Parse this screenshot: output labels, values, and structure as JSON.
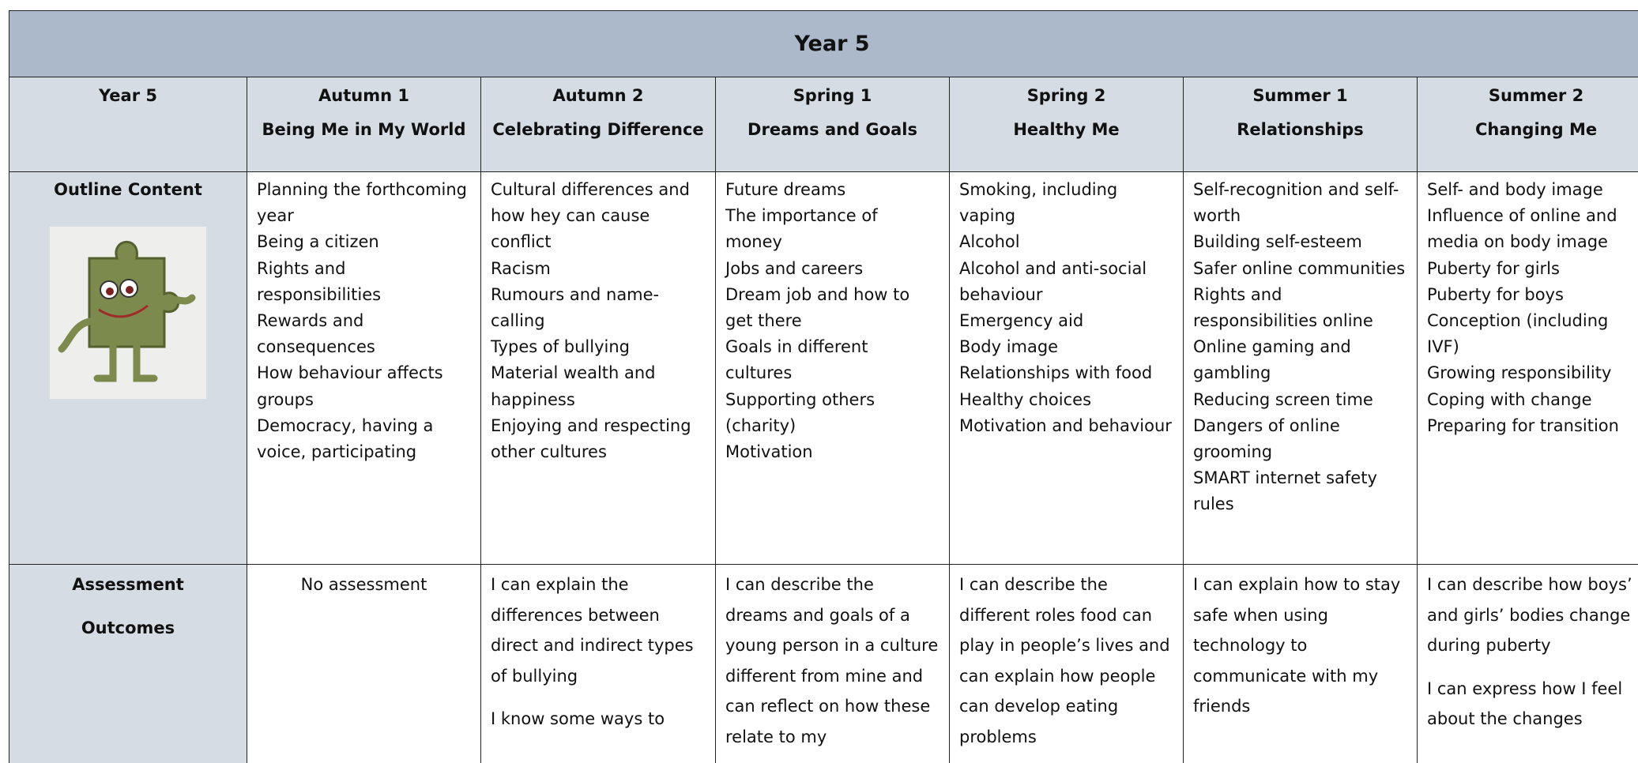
{
  "table": {
    "title": "Year 5",
    "header": [
      [
        "Year 5"
      ],
      [
        "Autumn 1",
        "Being Me in My World"
      ],
      [
        "Autumn 2",
        "Celebrating Difference"
      ],
      [
        "Spring 1",
        "Dreams and Goals"
      ],
      [
        "Spring 2",
        "Healthy Me"
      ],
      [
        "Summer 1",
        "Relationships"
      ],
      [
        "Summer 2",
        "Changing Me"
      ]
    ],
    "rows": [
      {
        "label": [
          "Outline Content"
        ],
        "cells": [
          [
            "Planning the forthcoming year",
            "Being a citizen",
            "Rights and responsibilities",
            "Rewards and consequences",
            "How behaviour affects groups",
            "Democracy, having a voice, participating"
          ],
          [
            "Cultural differences and how hey can cause conflict",
            "Racism",
            "Rumours and name-calling",
            "Types of bullying",
            "Material wealth and happiness",
            "Enjoying and respecting other cultures"
          ],
          [
            "Future dreams",
            "The importance of money",
            "Jobs and careers",
            "Dream job and how to get there",
            "Goals in different cultures",
            "Supporting others (charity)",
            "Motivation"
          ],
          [
            "Smoking, including vaping",
            "Alcohol",
            "Alcohol and anti-social behaviour",
            "Emergency aid",
            "Body image",
            "Relationships with food",
            "Healthy choices",
            "Motivation and behaviour"
          ],
          [
            "Self-recognition and self-worth",
            "Building self-esteem",
            "Safer online communities",
            "Rights and responsibilities online",
            "Online gaming and gambling",
            "Reducing screen time",
            "Dangers of online grooming",
            "SMART internet safety rules"
          ],
          [
            "Self- and body image",
            "Influence of online and media on body image",
            "Puberty for girls",
            "Puberty for boys",
            "Conception (including IVF)",
            "Growing responsibility",
            "Coping with change",
            "Preparing for transition"
          ]
        ]
      },
      {
        "label": [
          "Assessment",
          "Outcomes"
        ],
        "cells": [
          [
            "No assessment"
          ],
          [
            "I can explain the differences between direct and indirect types of bullying",
            "I know some ways to"
          ],
          [
            "I can describe the dreams and goals of a young person in a culture different from mine and can reflect on how these relate to my"
          ],
          [
            "I can describe the different roles food can play in people’s lives and can explain how people can develop eating problems"
          ],
          [
            "I can explain how to stay safe when using technology to communicate with my friends"
          ],
          [
            "I can describe how boys’ and girls’  bodies change during puberty",
            "I can express how I feel about the changes"
          ]
        ]
      }
    ]
  }
}
